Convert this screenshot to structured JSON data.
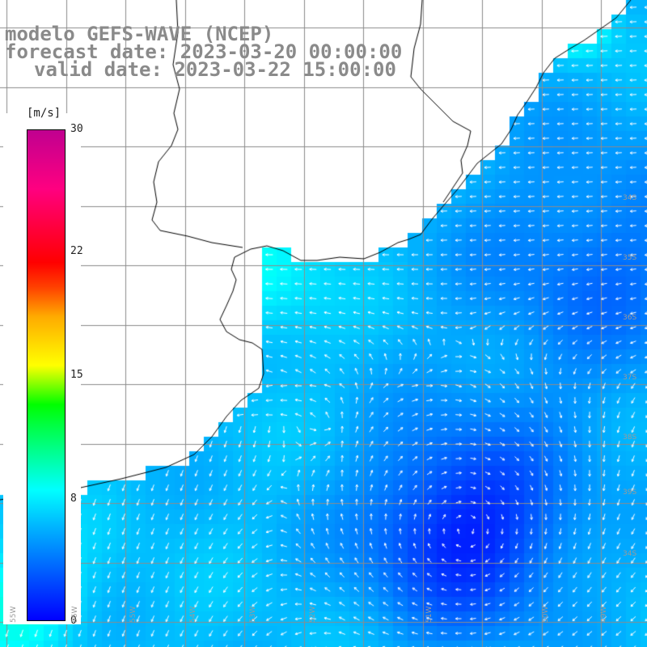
{
  "header": {
    "line1": "modelo GEFS-WAVE (NCEP)",
    "line2": "forecast date: 2023-03-20 00:00:00",
    "line3": "valid date: 2023-03-22 15:00:00"
  },
  "legend": {
    "units": "[m/s]",
    "ticks": [
      "30",
      "22",
      "15",
      "8",
      "0"
    ],
    "tick_values": [
      30,
      22,
      15,
      8,
      0
    ],
    "range": [
      0,
      30
    ]
  },
  "map_labels": {
    "latitudes": [
      "34S",
      "35S",
      "36S",
      "37S",
      "38S",
      "39S",
      "34S"
    ],
    "longitudes": [
      "55W",
      "56W",
      "55W",
      "54W",
      "53W",
      "52W",
      "51W",
      "50W",
      "49W"
    ]
  },
  "colors": {
    "land": "#ffffff",
    "grid": "#8c8c8c",
    "coast": "#000000",
    "arrows": "#ffffff",
    "title": "#8a8a8a"
  }
}
